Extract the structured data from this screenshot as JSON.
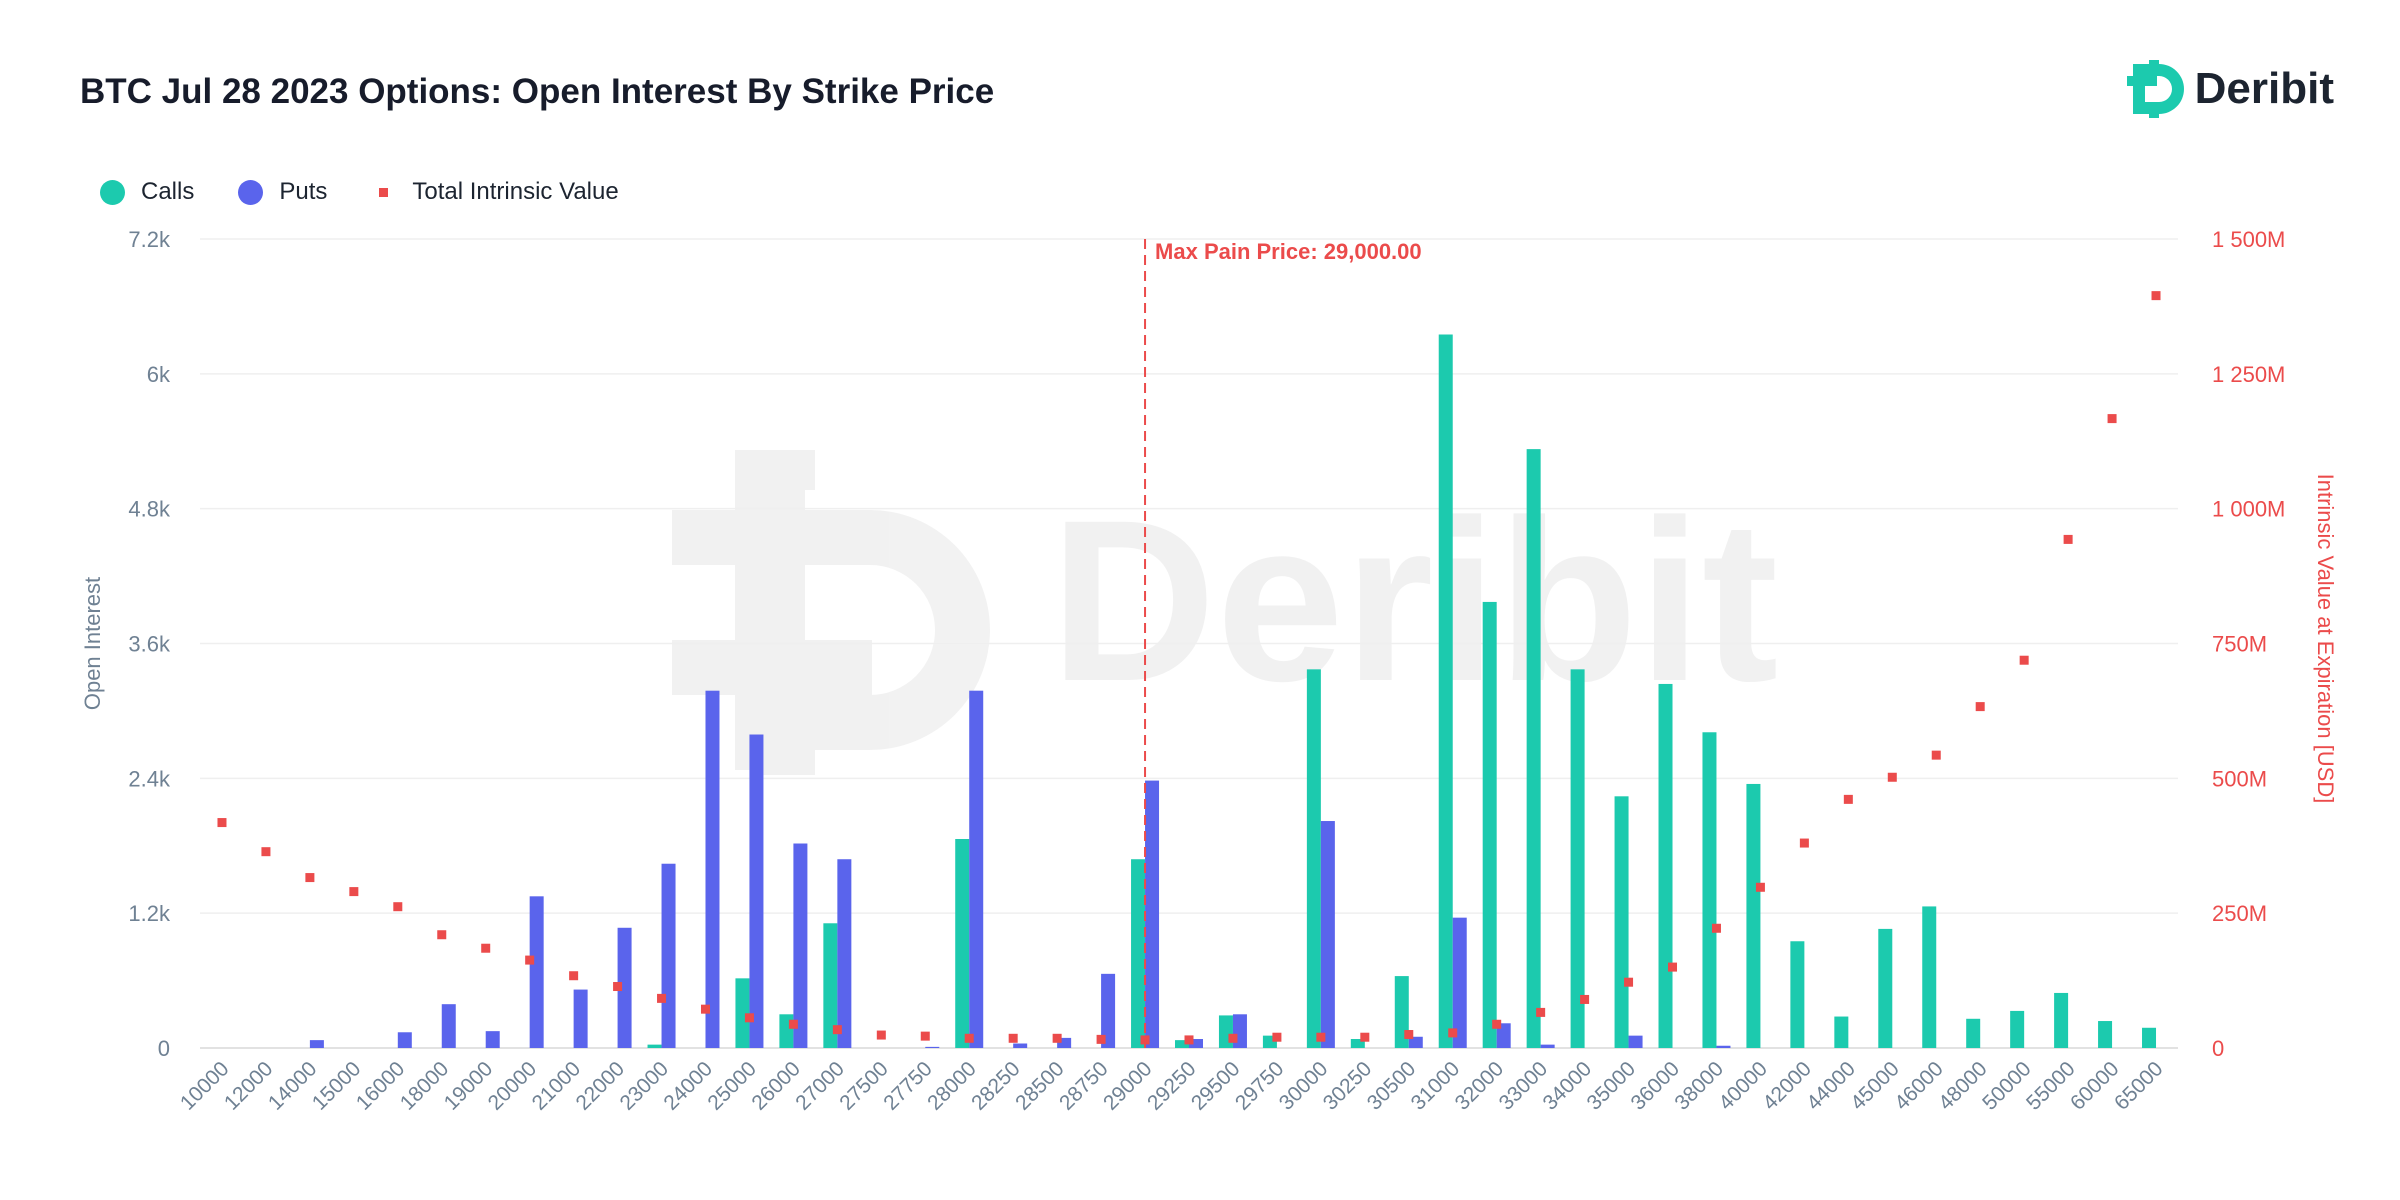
{
  "title": "BTC Jul 28 2023 Options: Open Interest By Strike Price",
  "logo": {
    "text": "Deribit"
  },
  "colors": {
    "calls": "#1ccaae",
    "puts": "#5a64ec",
    "intrinsic": "#eb4b4b",
    "axis_left": "#6f8193",
    "axis_right": "#eb4b4b",
    "grid": "#efefef",
    "title": "#171c2b"
  },
  "legend": {
    "calls": "Calls",
    "puts": "Puts",
    "intrinsic": "Total Intrinsic Value"
  },
  "chart_data": {
    "type": "bar",
    "categories": [
      "10000",
      "12000",
      "14000",
      "15000",
      "16000",
      "18000",
      "19000",
      "20000",
      "21000",
      "22000",
      "23000",
      "24000",
      "25000",
      "26000",
      "27000",
      "27500",
      "27750",
      "28000",
      "28250",
      "28500",
      "28750",
      "29000",
      "29250",
      "29500",
      "29750",
      "30000",
      "30250",
      "30500",
      "31000",
      "32000",
      "33000",
      "34000",
      "35000",
      "36000",
      "38000",
      "40000",
      "42000",
      "44000",
      "45000",
      "46000",
      "48000",
      "50000",
      "55000",
      "60000",
      "65000"
    ],
    "series": [
      {
        "name": "Calls",
        "type": "bar",
        "axis": "left",
        "values": [
          0,
          0,
          0,
          0,
          0,
          0,
          0,
          0,
          0,
          0,
          30,
          0,
          620,
          300,
          1110,
          0,
          0,
          1860,
          0,
          0,
          0,
          1680,
          70,
          290,
          110,
          3370,
          80,
          640,
          6350,
          3970,
          5330,
          3370,
          2240,
          3240,
          2810,
          2350,
          950,
          280,
          1060,
          1260,
          260,
          330,
          490,
          240,
          180
        ]
      },
      {
        "name": "Puts",
        "type": "bar",
        "axis": "left",
        "values": [
          0,
          0,
          70,
          0,
          140,
          390,
          150,
          1350,
          520,
          1070,
          1640,
          3180,
          2790,
          1820,
          1680,
          0,
          10,
          3180,
          40,
          90,
          660,
          2380,
          80,
          300,
          0,
          2020,
          0,
          100,
          1160,
          220,
          30,
          0,
          110,
          0,
          20,
          0,
          0,
          0,
          0,
          0,
          0,
          0,
          0,
          0,
          0
        ]
      },
      {
        "name": "Total Intrinsic Value",
        "type": "scatter",
        "axis": "right",
        "values": [
          418,
          364,
          316,
          290,
          262,
          210,
          185,
          163,
          134,
          114,
          92,
          72,
          56,
          44,
          34,
          24,
          22,
          18,
          18,
          18,
          16,
          15,
          15,
          18,
          20,
          20,
          20,
          25,
          28,
          44,
          66,
          90,
          122,
          150,
          222,
          298,
          380,
          461,
          502,
          543,
          633,
          719,
          943,
          1167,
          1395
        ]
      }
    ],
    "annotation": "Max Pain Price: 29,000.00",
    "annotation_category": "29000",
    "y_left": {
      "label": "Open Interest",
      "ticks": [
        "0",
        "1.2k",
        "2.4k",
        "3.6k",
        "4.8k",
        "6k",
        "7.2k"
      ],
      "range": [
        0,
        7200
      ]
    },
    "y_right": {
      "label": "Intrinsic Value at Expiration [USD]",
      "ticks": [
        "0",
        "250M",
        "500M",
        "750M",
        "1 000M",
        "1 250M",
        "1 500M"
      ],
      "range": [
        0,
        1500
      ]
    },
    "grid": true,
    "legend_position": "top-left"
  }
}
